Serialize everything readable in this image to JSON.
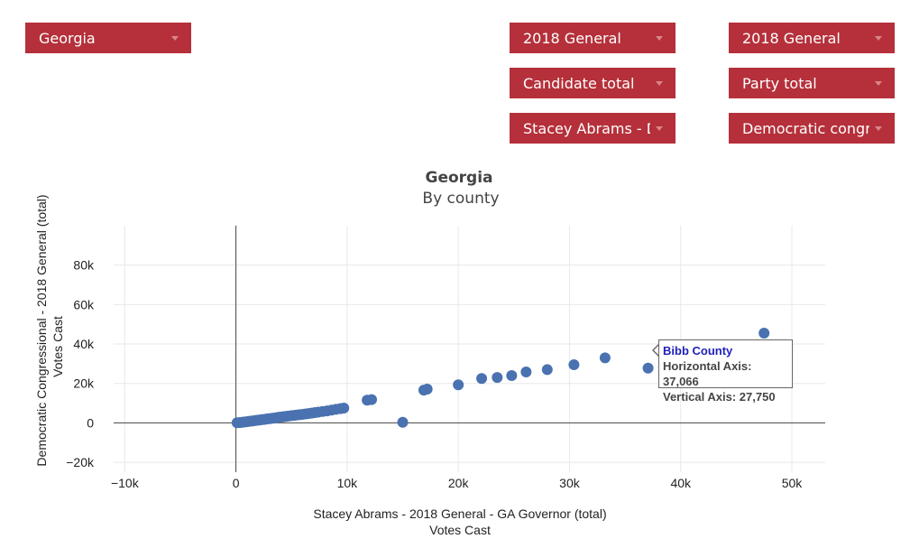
{
  "filters": {
    "state": "Georgia",
    "left_election": "2018 General",
    "left_metric": "Candidate total",
    "left_candidate": "Stacey Abrams - D",
    "right_election": "2018 General",
    "right_metric": "Party total",
    "right_party": "Democratic congre"
  },
  "colors": {
    "accent": "#b5303a",
    "point": "#4a72b0"
  },
  "tooltip": {
    "title": "Bibb County",
    "line1": "Horizontal Axis: 37,066",
    "line2": "Vertical Axis: 27,750"
  },
  "chart_data": {
    "type": "scatter",
    "title": "Georgia",
    "subtitle": "By county",
    "xlabel": "Stacey Abrams - 2018 General - GA Governor (total)",
    "xlabel2": "Votes Cast",
    "ylabel": "Democratic Congressional - 2018 General (total)",
    "ylabel2": "Votes Cast",
    "xlim": [
      -11000,
      53000
    ],
    "ylim": [
      -25000,
      100000
    ],
    "xticks": [
      -10000,
      0,
      10000,
      20000,
      30000,
      40000,
      50000
    ],
    "xtick_labels": [
      "−10k",
      "0",
      "10k",
      "20k",
      "30k",
      "40k",
      "50k"
    ],
    "yticks": [
      -20000,
      0,
      20000,
      40000,
      60000,
      80000
    ],
    "ytick_labels": [
      "−20k",
      "0",
      "20k",
      "40k",
      "60k",
      "80k"
    ],
    "grid": true,
    "points": [
      [
        100,
        50
      ],
      [
        300,
        150
      ],
      [
        500,
        250
      ],
      [
        700,
        400
      ],
      [
        900,
        550
      ],
      [
        1100,
        700
      ],
      [
        1300,
        850
      ],
      [
        1500,
        1000
      ],
      [
        1700,
        1150
      ],
      [
        1900,
        1300
      ],
      [
        2100,
        1450
      ],
      [
        2300,
        1600
      ],
      [
        2500,
        1750
      ],
      [
        2700,
        1900
      ],
      [
        2900,
        2050
      ],
      [
        3100,
        2200
      ],
      [
        3300,
        2350
      ],
      [
        3500,
        2500
      ],
      [
        3700,
        2700
      ],
      [
        3900,
        2850
      ],
      [
        4100,
        3000
      ],
      [
        4300,
        3150
      ],
      [
        4500,
        3300
      ],
      [
        4700,
        3450
      ],
      [
        5000,
        3650
      ],
      [
        5300,
        3850
      ],
      [
        5600,
        4050
      ],
      [
        5900,
        4250
      ],
      [
        6200,
        4450
      ],
      [
        6500,
        4700
      ],
      [
        6800,
        4950
      ],
      [
        7100,
        5200
      ],
      [
        7400,
        5450
      ],
      [
        7800,
        5800
      ],
      [
        8200,
        6100
      ],
      [
        8600,
        6500
      ],
      [
        9000,
        6900
      ],
      [
        9400,
        7200
      ],
      [
        9700,
        7500
      ],
      [
        11800,
        11500
      ],
      [
        12200,
        11800
      ],
      [
        15000,
        300
      ],
      [
        16900,
        16600
      ],
      [
        17200,
        17100
      ],
      [
        20000,
        19300
      ],
      [
        22100,
        22500
      ],
      [
        23500,
        23000
      ],
      [
        24800,
        24000
      ],
      [
        26100,
        25800
      ],
      [
        28000,
        27000
      ],
      [
        30400,
        29500
      ],
      [
        33200,
        33000
      ],
      [
        37066,
        27750
      ],
      [
        38500,
        38500
      ],
      [
        47500,
        45500
      ]
    ]
  }
}
